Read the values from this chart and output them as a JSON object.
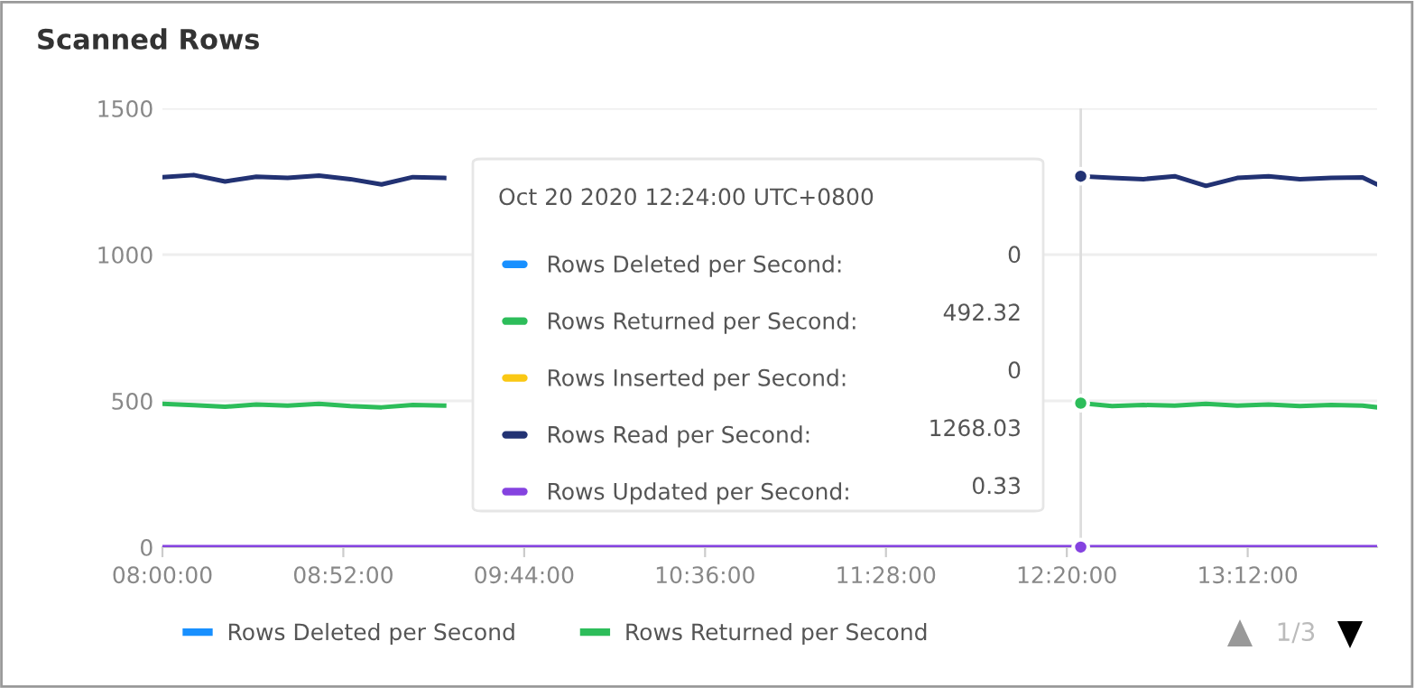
{
  "chart_data": {
    "type": "line",
    "title": "Scanned Rows",
    "x": [
      8.0,
      8.15,
      8.3,
      8.45,
      8.6,
      8.75,
      8.9,
      9.05,
      9.2,
      9.35,
      9.5,
      9.65,
      9.8,
      9.95,
      10.1,
      10.25,
      10.4,
      10.55,
      10.7,
      10.85,
      11.0,
      11.15,
      11.3,
      11.45,
      11.6,
      11.75,
      11.9,
      12.05,
      12.2,
      12.4,
      12.55,
      12.7,
      12.85,
      13.0,
      13.15,
      13.3,
      13.45,
      13.6,
      13.75,
      13.82
    ],
    "series": [
      {
        "name": "Rows Deleted per Second",
        "color": "#1890ff",
        "values": [
          null,
          null,
          null,
          null,
          null,
          null,
          null,
          null,
          null,
          null,
          null,
          null,
          null,
          null,
          null,
          null,
          null,
          null,
          null,
          null,
          null,
          null,
          null,
          null,
          null,
          null,
          null,
          null,
          null,
          null,
          null,
          null,
          null,
          null,
          null,
          null,
          null,
          null,
          null,
          null
        ]
      },
      {
        "name": "Rows Returned per Second",
        "color": "#2dbd5a",
        "values": [
          490,
          485,
          480,
          488,
          484,
          490,
          482,
          478,
          486,
          484,
          null,
          null,
          null,
          null,
          null,
          null,
          null,
          null,
          null,
          null,
          null,
          null,
          null,
          null,
          null,
          null,
          null,
          null,
          null,
          492.32,
          482,
          486,
          484,
          490,
          484,
          488,
          482,
          486,
          484,
          478
        ]
      },
      {
        "name": "Rows Inserted per Second",
        "color": "#fac814",
        "values": [
          null,
          null,
          null,
          null,
          null,
          null,
          null,
          null,
          null,
          null,
          null,
          null,
          null,
          null,
          null,
          null,
          null,
          null,
          null,
          null,
          null,
          null,
          null,
          null,
          null,
          null,
          null,
          null,
          null,
          null,
          null,
          null,
          null,
          null,
          null,
          null,
          null,
          null,
          null,
          null
        ]
      },
      {
        "name": "Rows Read per Second",
        "color": "#223273",
        "values": [
          1265,
          1272,
          1250,
          1266,
          1262,
          1270,
          1258,
          1240,
          1265,
          1262,
          null,
          null,
          null,
          null,
          null,
          null,
          null,
          null,
          null,
          null,
          null,
          null,
          null,
          null,
          null,
          null,
          null,
          null,
          null,
          1268.03,
          1262,
          1258,
          1268,
          1235,
          1262,
          1268,
          1258,
          1262,
          1264,
          1240
        ]
      },
      {
        "name": "Rows Updated per Second",
        "color": "#8543e0",
        "values": [
          0,
          0,
          0,
          0,
          0,
          0,
          0,
          0,
          0,
          0,
          0,
          0,
          0,
          0,
          0,
          0,
          0,
          0,
          0,
          0,
          0,
          0,
          0,
          0,
          0,
          0,
          0,
          0,
          0,
          0.33,
          0,
          0,
          0,
          0,
          0,
          0,
          0,
          0,
          0,
          0
        ]
      }
    ],
    "xlim": [
      8.0,
      13.82
    ],
    "xticks": [
      {
        "value": 8.0,
        "label": "08:00:00"
      },
      {
        "value": 8.8667,
        "label": "08:52:00"
      },
      {
        "value": 9.7333,
        "label": "09:44:00"
      },
      {
        "value": 10.6,
        "label": "10:36:00"
      },
      {
        "value": 11.4667,
        "label": "11:28:00"
      },
      {
        "value": 12.3333,
        "label": "12:20:00"
      },
      {
        "value": 13.2,
        "label": "13:12:00"
      }
    ],
    "ylim": [
      0,
      1500
    ],
    "yticks": [
      0,
      500,
      1000,
      1500
    ],
    "grid": "y",
    "legend": "bottom",
    "marker": "none",
    "line_style": "solid",
    "ref_lines": [
      {
        "axis": "x",
        "value": 12.4,
        "color": "#dddddd"
      }
    ],
    "annotations": [
      "Oct 20 2020 12:24:00 UTC+0800",
      ":",
      "0",
      "492.32",
      "0",
      "1268.03",
      "0.33",
      "1/3"
    ]
  }
}
